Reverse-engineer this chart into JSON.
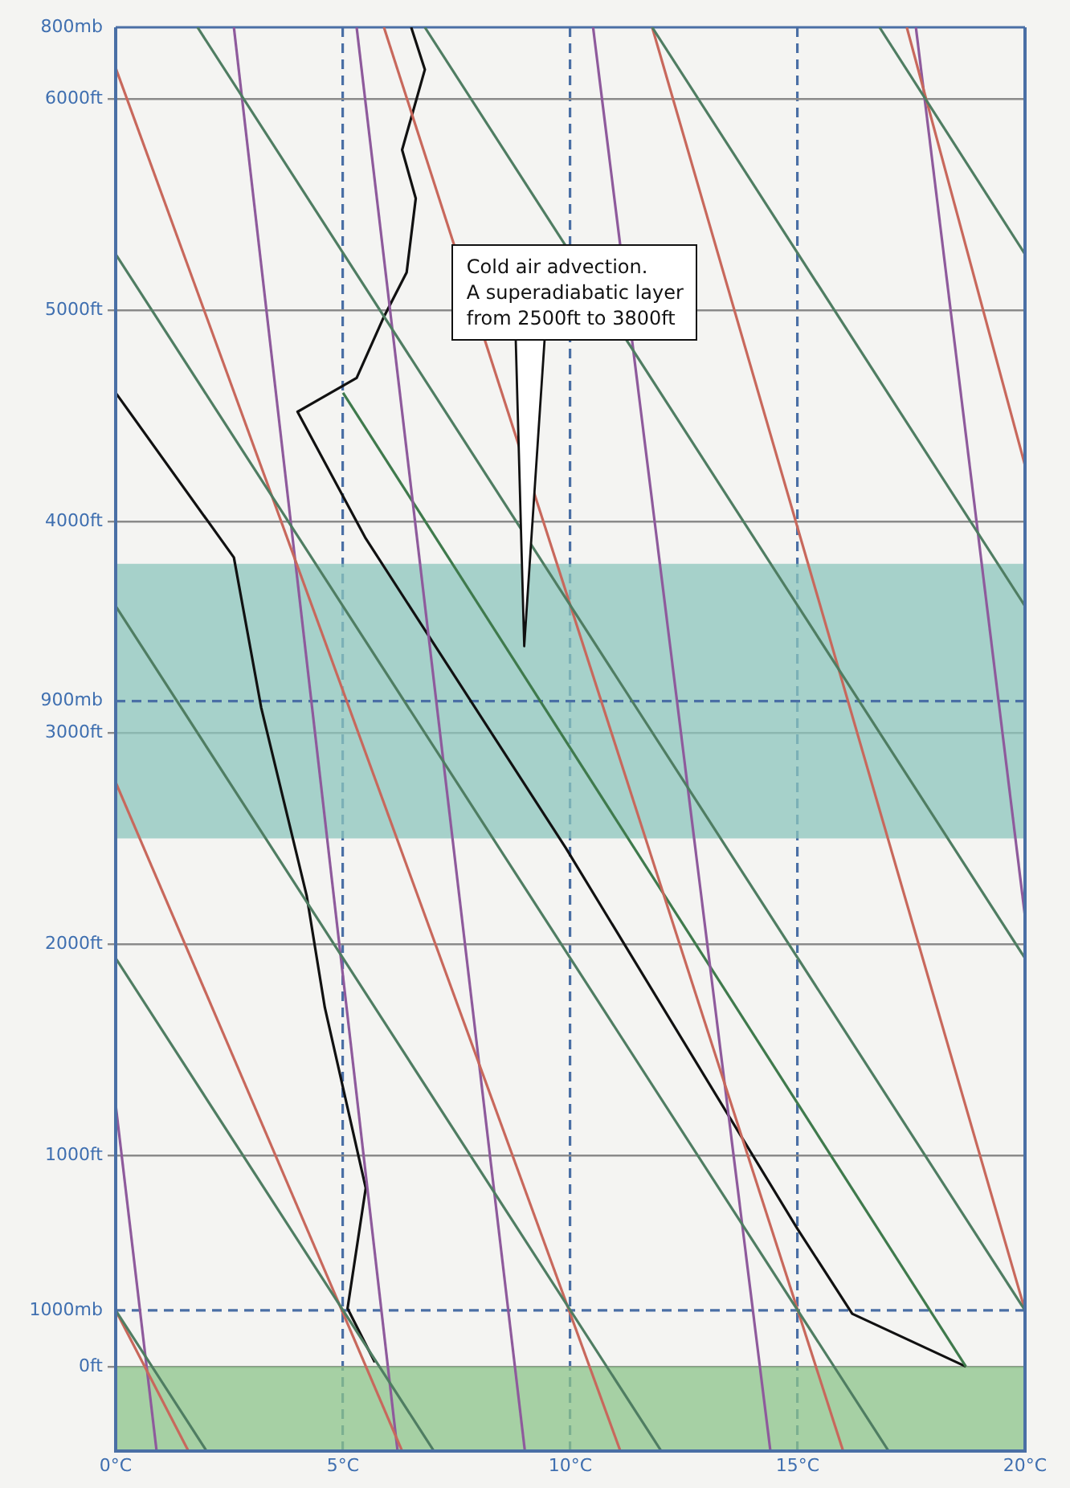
{
  "chart_data": {
    "type": "line",
    "xlim": [
      0,
      20
    ],
    "ylim": [
      -400,
      6340
    ],
    "xticks": [
      {
        "value": 0,
        "label": "0°C"
      },
      {
        "value": 5,
        "label": "5°C"
      },
      {
        "value": 10,
        "label": "10°C"
      },
      {
        "value": 15,
        "label": "15°C"
      },
      {
        "value": 20,
        "label": "20°C"
      }
    ],
    "yticks": [
      {
        "value": 0,
        "label": "0ft"
      },
      {
        "value": 1000,
        "label": "1000ft"
      },
      {
        "value": 2000,
        "label": "2000ft"
      },
      {
        "value": 3000,
        "label": "3000ft"
      },
      {
        "value": 4000,
        "label": "4000ft"
      },
      {
        "value": 5000,
        "label": "5000ft"
      },
      {
        "value": 6000,
        "label": "6000ft"
      }
    ],
    "grid": true,
    "legend": false,
    "marker": "none",
    "line_style": "solid",
    "ref_lines": [
      {
        "axis": "y",
        "value": 266,
        "label": "1000mb",
        "color": "#4a6fa5",
        "line_style": "dashed"
      },
      {
        "axis": "y",
        "value": 3150,
        "label": "900mb",
        "color": "#4a6fa5",
        "line_style": "dashed"
      },
      {
        "axis": "y",
        "value": 6340,
        "label": "800mb",
        "color": "#4a6fa5",
        "line_style": "solid"
      }
    ],
    "bands": [
      {
        "axis": "y",
        "from": -400,
        "to": 0,
        "color": "#8cc48a"
      },
      {
        "axis": "y",
        "from": 2500,
        "to": 3800,
        "color": "#8cc6bc",
        "label": "Cold air advection.\nA superadiabatic layer\nfrom 2500ft to 3800ft"
      }
    ],
    "series": [
      {
        "color": "#4f7d62",
        "x": [
          0,
          2.0
        ],
        "values": [
          266,
          -400
        ]
      },
      {
        "color": "#4f7d62",
        "x": [
          0,
          7.0
        ],
        "values": [
          1933,
          -400
        ]
      },
      {
        "color": "#4f7d62",
        "x": [
          0,
          12.0
        ],
        "values": [
          3600,
          -400
        ]
      },
      {
        "color": "#4f7d62",
        "x": [
          0,
          17.0
        ],
        "values": [
          5266,
          -400
        ]
      },
      {
        "color": "#4f7d62",
        "x": [
          1.8,
          20
        ],
        "values": [
          6340,
          266
        ]
      },
      {
        "color": "#4f7d62",
        "x": [
          6.8,
          20
        ],
        "values": [
          6340,
          1933
        ]
      },
      {
        "color": "#4f7d62",
        "x": [
          11.8,
          20
        ],
        "values": [
          6340,
          3600
        ]
      },
      {
        "color": "#4f7d62",
        "x": [
          16.8,
          20
        ],
        "values": [
          6340,
          5266
        ]
      },
      {
        "color": "#c8685c",
        "x": [
          0,
          1.6
        ],
        "values": [
          266,
          -400
        ]
      },
      {
        "color": "#c8685c",
        "x": [
          0,
          6.3
        ],
        "values": [
          2766,
          -400
        ]
      },
      {
        "color": "#c8685c",
        "x": [
          0,
          11.1
        ],
        "values": [
          6148,
          -400
        ]
      },
      {
        "color": "#c8685c",
        "x": [
          5.9,
          16.0
        ],
        "values": [
          6340,
          -400
        ]
      },
      {
        "color": "#c8685c",
        "x": [
          11.8,
          20
        ],
        "values": [
          6340,
          266
        ]
      },
      {
        "color": "#c8685c",
        "x": [
          17.4,
          20
        ],
        "values": [
          6340,
          4266
        ]
      },
      {
        "color": "#8e5a9c",
        "x": [
          0,
          0.9
        ],
        "values": [
          1240,
          -400
        ]
      },
      {
        "color": "#8e5a9c",
        "x": [
          2.6,
          6.2
        ],
        "values": [
          6340,
          -400
        ]
      },
      {
        "color": "#8e5a9c",
        "x": [
          5.3,
          9.0
        ],
        "values": [
          6340,
          -400
        ]
      },
      {
        "color": "#8e5a9c",
        "x": [
          10.5,
          14.4
        ],
        "values": [
          6340,
          -400
        ]
      },
      {
        "color": "#8e5a9c",
        "x": [
          17.6,
          20
        ],
        "values": [
          6340,
          2130
        ]
      },
      {
        "color": "#3f7a4c",
        "x": [
          5.0,
          18.7
        ],
        "values": [
          4610,
          0
        ]
      },
      {
        "color": "#111111",
        "x": [
          18.7,
          16.2,
          15.0,
          9.9,
          5.5,
          4.0,
          5.3,
          5.9,
          6.4,
          6.6,
          6.3,
          6.8,
          6.5
        ],
        "values": [
          0,
          250,
          650,
          2455,
          3920,
          4520,
          4680,
          4970,
          5180,
          5530,
          5760,
          6140,
          6340
        ]
      },
      {
        "color": "#111111",
        "x": [
          0,
          2.6,
          3.2,
          4.2,
          4.6,
          5.5,
          5.1,
          5.7
        ],
        "values": [
          4610,
          3830,
          3120,
          2230,
          1700,
          845,
          275,
          20
        ]
      }
    ]
  }
}
